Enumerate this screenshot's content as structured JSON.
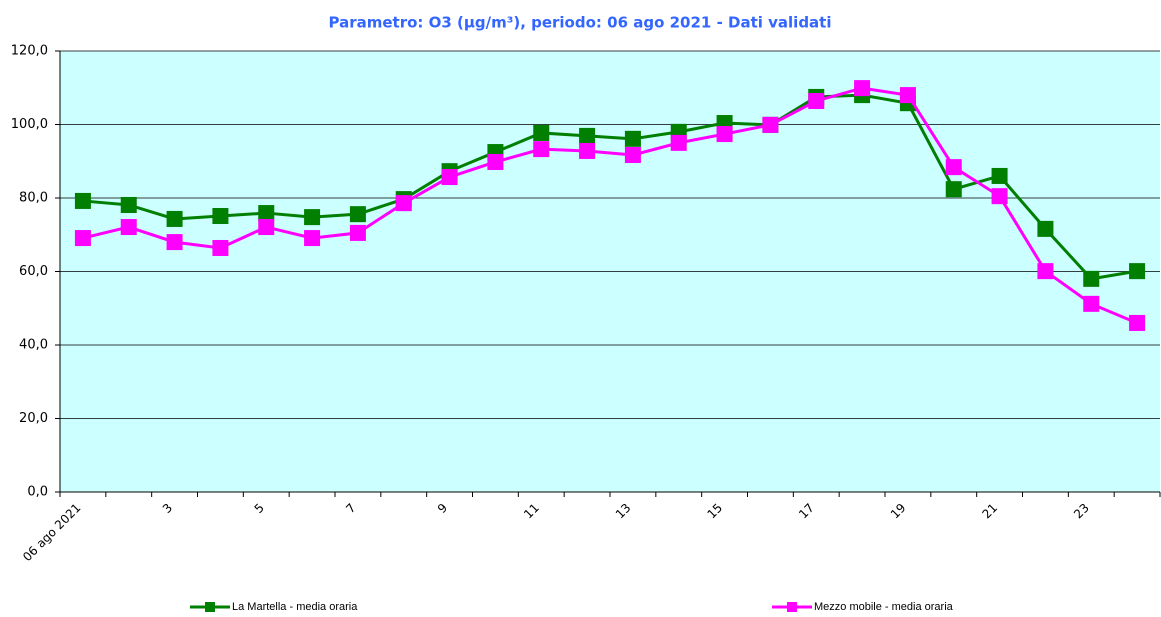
{
  "chart_data": {
    "type": "line",
    "title": "Parametro: O3 (µg/m³), periodo: 06 ago 2021 - Dati validati",
    "categories": [
      "06 ago 2021",
      null,
      "3",
      null,
      "5",
      null,
      "7",
      null,
      "9",
      null,
      "11",
      null,
      "13",
      null,
      "15",
      null,
      "17",
      null,
      "19",
      null,
      "21",
      null,
      "23",
      null
    ],
    "series": [
      {
        "name": "La Martella - media oraria",
        "color": "#007f00",
        "values": [
          79.2,
          78.1,
          74.3,
          75.1,
          75.9,
          74.8,
          75.6,
          79.7,
          87.3,
          92.5,
          97.7,
          96.9,
          96.1,
          98.0,
          100.4,
          99.9,
          107.5,
          108.0,
          105.8,
          82.4,
          86.0,
          71.6,
          58.0,
          60.1
        ]
      },
      {
        "name": "Mezzo mobile - media oraria",
        "color": "#ff00ff",
        "values": [
          69.1,
          72.1,
          68.0,
          66.4,
          72.1,
          69.1,
          70.5,
          78.6,
          85.7,
          89.8,
          93.3,
          92.8,
          91.7,
          95.0,
          97.4,
          99.9,
          106.4,
          109.9,
          108.0,
          88.4,
          80.5,
          60.1,
          51.2,
          46.0
        ]
      }
    ],
    "ylim": [
      0,
      120
    ],
    "yticks": [
      {
        "value": 0,
        "label": "0,0"
      },
      {
        "value": 20,
        "label": "20,0"
      },
      {
        "value": 40,
        "label": "40,0"
      },
      {
        "value": 60,
        "label": "60,0"
      },
      {
        "value": 80,
        "label": "80,0"
      },
      {
        "value": 100,
        "label": "100,0"
      },
      {
        "value": 120,
        "label": "120,0"
      }
    ],
    "grid": true,
    "legend": "bottom"
  }
}
